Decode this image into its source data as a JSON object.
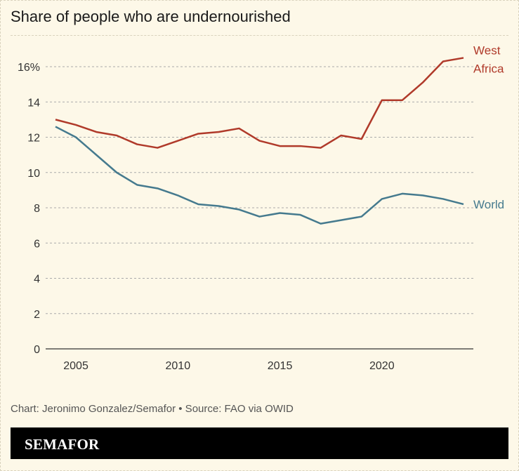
{
  "title": "Share of people who are undernourished",
  "credit": "Chart: Jeronimo Gonzalez/Semafor • Source: FAO via OWID",
  "logo": "SEMAFOR",
  "chart_data": {
    "type": "line",
    "title": "Share of people who are undernourished",
    "x": [
      2004,
      2005,
      2006,
      2007,
      2008,
      2009,
      2010,
      2011,
      2012,
      2013,
      2014,
      2015,
      2016,
      2017,
      2018,
      2019,
      2020,
      2021,
      2022,
      2023,
      2024
    ],
    "xticks": [
      2005,
      2010,
      2015,
      2020
    ],
    "xtick_labels": [
      "2005",
      "2010",
      "2015",
      "2020"
    ],
    "yticks": [
      0,
      2,
      4,
      6,
      8,
      10,
      12,
      14,
      16
    ],
    "ytick_labels": [
      "0",
      "2",
      "4",
      "6",
      "8",
      "10",
      "12",
      "14",
      "16%"
    ],
    "ylim": [
      0,
      16
    ],
    "grid": "horizontal dashed",
    "series": [
      {
        "name": "West Africa",
        "label_lines": [
          "West",
          "Africa"
        ],
        "color": "#b03a2a",
        "values": [
          13.0,
          12.7,
          12.3,
          12.1,
          11.6,
          11.4,
          11.8,
          12.2,
          12.3,
          12.5,
          11.8,
          11.5,
          11.5,
          11.4,
          12.1,
          11.9,
          14.1,
          14.1,
          15.1,
          16.3,
          16.5
        ]
      },
      {
        "name": "World",
        "label_lines": [
          "World"
        ],
        "color": "#457a8e",
        "values": [
          12.6,
          12.0,
          11.0,
          10.0,
          9.3,
          9.1,
          8.7,
          8.2,
          8.1,
          7.9,
          7.5,
          7.7,
          7.6,
          7.1,
          7.3,
          7.5,
          8.5,
          8.8,
          8.7,
          8.5,
          8.2
        ]
      }
    ]
  }
}
